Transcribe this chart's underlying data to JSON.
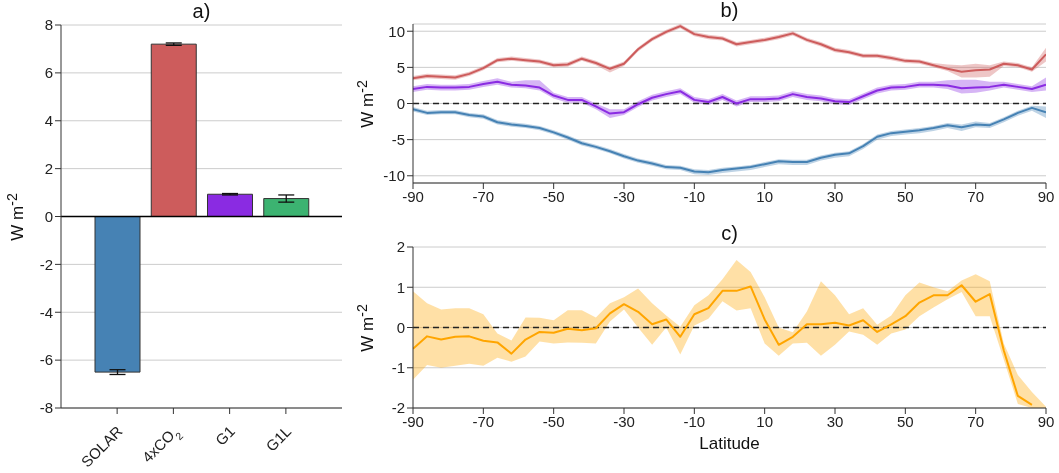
{
  "chart_data": [
    {
      "type": "bar",
      "title": "a)",
      "ylabel": "W m$^{-2}$",
      "categories": [
        "SOLAR",
        "4xCO$_{2}$",
        "G1",
        "G1L"
      ],
      "values": [
        -6.5,
        7.2,
        0.93,
        0.75
      ],
      "colors": [
        "#4682b4",
        "#cd5c5c",
        "#8a2be2",
        "#3cb371"
      ],
      "errors": [
        0.1,
        0.05,
        0.03,
        0.15
      ],
      "ylim": [
        -8,
        8
      ],
      "yticks": [
        -8,
        -6,
        -4,
        -2,
        0,
        2,
        4,
        6,
        8
      ],
      "grid": "y",
      "ref_lines": [
        {
          "axis": "y",
          "value": 0,
          "color": "#000000",
          "line_style": "solid"
        }
      ]
    },
    {
      "type": "line",
      "title": "b)",
      "ylabel": "W m$^{-2}$",
      "x": [
        -90,
        -86,
        -82,
        -78,
        -74,
        -70,
        -66,
        -62,
        -58,
        -54,
        -50,
        -46,
        -42,
        -38,
        -34,
        -30,
        -26,
        -22,
        -18,
        -14,
        -10,
        -6,
        -2,
        2,
        6,
        10,
        14,
        18,
        22,
        26,
        30,
        34,
        38,
        42,
        46,
        50,
        54,
        58,
        62,
        66,
        70,
        74,
        78,
        82,
        86,
        90
      ],
      "series": [
        {
          "color": "#cd5c5c",
          "values": [
            3.5,
            3.8,
            3.7,
            3.6,
            4.1,
            4.9,
            6.0,
            6.2,
            6.0,
            5.8,
            5.3,
            5.4,
            6.2,
            5.6,
            4.8,
            5.5,
            7.5,
            8.9,
            9.9,
            10.7,
            9.6,
            9.2,
            9.0,
            8.2,
            8.5,
            8.8,
            9.2,
            9.7,
            8.8,
            8.2,
            7.4,
            7.1,
            6.6,
            6.6,
            6.3,
            5.9,
            5.8,
            5.3,
            4.8,
            4.4,
            4.6,
            4.7,
            5.5,
            5.3,
            4.7,
            6.8
          ],
          "lower": [
            3.2,
            3.5,
            3.4,
            3.3,
            3.8,
            4.6,
            5.7,
            5.9,
            5.7,
            5.5,
            5.0,
            5.1,
            5.9,
            5.3,
            4.3,
            5.2,
            7.2,
            8.6,
            9.6,
            10.4,
            9.3,
            8.9,
            8.7,
            7.9,
            8.2,
            8.5,
            8.9,
            9.4,
            8.5,
            7.9,
            7.1,
            6.8,
            6.3,
            6.3,
            6.0,
            5.6,
            5.5,
            5.0,
            4.5,
            3.6,
            3.6,
            3.7,
            5.2,
            5.0,
            4.4,
            5.8
          ],
          "upper": [
            3.8,
            4.1,
            4.0,
            3.9,
            4.4,
            5.2,
            6.3,
            6.5,
            6.3,
            6.1,
            5.6,
            5.7,
            6.5,
            5.9,
            5.1,
            5.8,
            7.8,
            9.2,
            10.2,
            11.0,
            9.9,
            9.5,
            9.3,
            8.5,
            8.8,
            9.1,
            9.5,
            10.0,
            9.1,
            8.5,
            7.7,
            7.4,
            6.9,
            6.9,
            6.6,
            6.2,
            6.1,
            5.6,
            5.4,
            5.3,
            5.5,
            5.3,
            5.8,
            5.6,
            5.0,
            7.7
          ]
        },
        {
          "color": "#8a2be2",
          "values": [
            2.0,
            2.3,
            2.2,
            2.2,
            2.3,
            2.7,
            3.0,
            2.6,
            2.5,
            2.2,
            1.1,
            0.5,
            0.5,
            -0.4,
            -1.4,
            -1.2,
            -0.1,
            0.8,
            1.3,
            1.7,
            0.5,
            0.2,
            0.9,
            0.0,
            0.6,
            0.6,
            0.7,
            1.3,
            0.9,
            0.7,
            0.3,
            0.2,
            1.0,
            1.8,
            2.2,
            2.3,
            2.6,
            2.6,
            2.5,
            2.1,
            2.2,
            2.3,
            2.6,
            2.3,
            2.0,
            2.6
          ],
          "lower": [
            1.6,
            1.9,
            1.8,
            1.8,
            1.9,
            2.3,
            2.6,
            2.2,
            2.1,
            1.8,
            0.7,
            0.1,
            0.1,
            -0.8,
            -2.0,
            -1.6,
            -0.5,
            0.4,
            0.9,
            1.3,
            0.1,
            -0.2,
            0.5,
            -0.4,
            0.2,
            0.2,
            0.3,
            0.9,
            0.5,
            0.3,
            -0.1,
            -0.2,
            0.6,
            1.4,
            1.8,
            1.9,
            2.2,
            2.2,
            2.0,
            1.4,
            1.5,
            1.8,
            2.2,
            1.9,
            1.6,
            1.8
          ],
          "upper": [
            2.4,
            2.7,
            2.6,
            2.6,
            2.7,
            3.1,
            3.5,
            3.0,
            3.2,
            3.2,
            1.5,
            0.9,
            0.9,
            0.0,
            -0.8,
            -0.8,
            0.3,
            1.2,
            1.7,
            2.1,
            0.9,
            0.6,
            1.3,
            0.4,
            1.0,
            1.0,
            1.1,
            1.7,
            1.3,
            1.1,
            0.7,
            0.6,
            1.4,
            2.2,
            2.6,
            2.7,
            3.0,
            3.0,
            3.2,
            3.3,
            3.3,
            3.0,
            3.0,
            2.7,
            2.4,
            3.6
          ]
        },
        {
          "color": "#4682b4",
          "values": [
            -0.8,
            -1.3,
            -1.2,
            -1.2,
            -1.6,
            -1.8,
            -2.6,
            -2.9,
            -3.1,
            -3.4,
            -4.0,
            -4.7,
            -5.5,
            -6.0,
            -6.6,
            -7.3,
            -7.9,
            -8.3,
            -8.8,
            -8.9,
            -9.4,
            -9.5,
            -9.2,
            -9.0,
            -8.8,
            -8.4,
            -8.0,
            -8.1,
            -8.1,
            -7.5,
            -7.1,
            -6.9,
            -5.9,
            -4.6,
            -4.1,
            -3.9,
            -3.7,
            -3.4,
            -3.0,
            -3.3,
            -2.9,
            -3.0,
            -2.2,
            -1.3,
            -0.6,
            -1.2
          ],
          "lower": [
            -1.1,
            -1.6,
            -1.5,
            -1.5,
            -1.9,
            -2.1,
            -2.9,
            -3.2,
            -3.4,
            -3.7,
            -4.3,
            -5.0,
            -5.8,
            -6.3,
            -6.9,
            -7.6,
            -8.2,
            -8.6,
            -9.1,
            -9.2,
            -9.8,
            -9.9,
            -9.6,
            -9.4,
            -9.2,
            -8.8,
            -8.4,
            -8.5,
            -8.5,
            -7.9,
            -7.5,
            -7.3,
            -6.3,
            -5.0,
            -4.5,
            -4.3,
            -4.1,
            -3.8,
            -3.4,
            -3.8,
            -3.3,
            -3.4,
            -2.6,
            -1.7,
            -1.0,
            -2.0
          ],
          "upper": [
            -0.5,
            -1.0,
            -0.9,
            -0.9,
            -1.3,
            -1.5,
            -2.3,
            -2.6,
            -2.8,
            -3.1,
            -3.7,
            -4.4,
            -5.2,
            -5.7,
            -6.3,
            -7.0,
            -7.6,
            -8.0,
            -8.5,
            -8.6,
            -9.1,
            -9.2,
            -8.9,
            -8.7,
            -8.5,
            -8.1,
            -7.7,
            -7.8,
            -7.8,
            -7.2,
            -6.8,
            -6.6,
            -5.6,
            -4.3,
            -3.8,
            -3.6,
            -3.4,
            -3.1,
            -2.7,
            -2.9,
            -2.5,
            -2.7,
            -1.9,
            -1.0,
            -0.3,
            -0.4
          ]
        }
      ],
      "xlim": [
        -90,
        90
      ],
      "xticks": [
        -90,
        -70,
        -50,
        -30,
        -10,
        10,
        30,
        50,
        70,
        90
      ],
      "ylim": [
        -11,
        11
      ],
      "yticks": [
        -10,
        -5,
        0,
        5,
        10
      ],
      "grid": "y",
      "ref_lines": [
        {
          "axis": "y",
          "value": 0,
          "color": "#222222",
          "line_style": "dashed"
        }
      ]
    },
    {
      "type": "line",
      "title": "c)",
      "xlabel": "Latitude",
      "ylabel": "W m$^{-2}$",
      "x": [
        -90,
        -86,
        -82,
        -78,
        -74,
        -70,
        -66,
        -62,
        -58,
        -54,
        -50,
        -46,
        -42,
        -38,
        -34,
        -30,
        -26,
        -22,
        -18,
        -14,
        -10,
        -6,
        -2,
        2,
        6,
        10,
        14,
        18,
        22,
        26,
        30,
        34,
        38,
        42,
        46,
        50,
        54,
        58,
        62,
        66,
        70,
        74,
        78,
        82,
        86,
        90
      ],
      "series": [
        {
          "color": "#ffa500",
          "values": [
            -0.53,
            -0.22,
            -0.3,
            -0.23,
            -0.22,
            -0.33,
            -0.37,
            -0.65,
            -0.3,
            -0.11,
            -0.13,
            -0.03,
            -0.07,
            -0.02,
            0.35,
            0.58,
            0.39,
            0.08,
            0.2,
            -0.23,
            0.33,
            0.48,
            0.91,
            0.91,
            1.02,
            0.2,
            -0.43,
            -0.23,
            0.08,
            0.08,
            0.12,
            0.05,
            0.18,
            -0.11,
            0.08,
            0.28,
            0.62,
            0.8,
            0.8,
            1.05,
            0.64,
            0.83,
            -0.57,
            -1.7,
            -1.92,
            null
          ],
          "lower": [
            -1.3,
            -0.93,
            -1.0,
            -0.95,
            -0.9,
            -0.95,
            -0.75,
            -0.85,
            -0.72,
            -0.35,
            -0.4,
            -0.37,
            -0.38,
            -0.4,
            0.15,
            0.45,
            0.0,
            -0.43,
            0.0,
            -0.67,
            0.05,
            0.22,
            0.65,
            0.42,
            0.48,
            -0.4,
            -0.7,
            -0.4,
            -0.38,
            -0.7,
            -0.43,
            -0.1,
            -0.18,
            -0.43,
            -0.15,
            -0.05,
            0.28,
            0.5,
            0.7,
            0.88,
            0.28,
            0.28,
            -0.8,
            -1.9,
            -2,
            -2
          ],
          "upper": [
            0.9,
            0.6,
            0.45,
            0.48,
            0.48,
            0.33,
            -0.15,
            -0.32,
            0.25,
            0.24,
            0.18,
            0.43,
            0.43,
            0.25,
            0.6,
            0.75,
            0.97,
            0.6,
            0.3,
            0.02,
            0.55,
            0.8,
            1.2,
            1.68,
            1.38,
            0.75,
            0.0,
            -0.12,
            0.4,
            1.15,
            0.8,
            0.33,
            0.48,
            0.07,
            0.3,
            0.8,
            1.12,
            1.0,
            0.9,
            1.17,
            1.32,
            1.15,
            -0.4,
            -1.18,
            -1.6,
            -1.97
          ]
        }
      ],
      "xlim": [
        -90,
        90
      ],
      "xticks": [
        -90,
        -70,
        -50,
        -30,
        -10,
        10,
        30,
        50,
        70,
        90
      ],
      "ylim": [
        -2,
        2
      ],
      "yticks": [
        -2,
        -1,
        0,
        1,
        2
      ],
      "grid": "y",
      "ref_lines": [
        {
          "axis": "y",
          "value": 0,
          "color": "#222222",
          "line_style": "dashed"
        }
      ]
    }
  ]
}
